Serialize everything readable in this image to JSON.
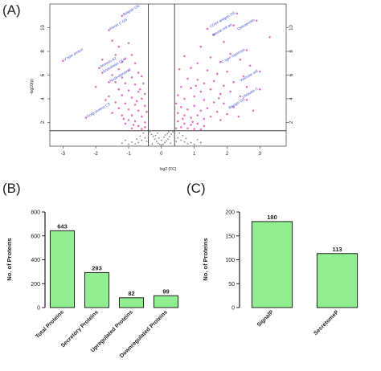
{
  "panels": {
    "a": "(A)",
    "b": "(B)",
    "c": "(C)"
  },
  "chart_data": [
    {
      "type": "scatter",
      "panel": "A",
      "xlabel": "log2 (FC)",
      "ylabel": "-log10(p)",
      "xlim": [
        -3.4,
        3.8
      ],
      "ylim": [
        0,
        12
      ],
      "xticks": [
        -3,
        -2,
        -1,
        0,
        1,
        2,
        3
      ],
      "yticks": [
        2,
        4,
        6,
        8,
        10
      ],
      "thresholds": {
        "x": [
          -0.4,
          0.4
        ],
        "y": 1.3
      },
      "colors": {
        "significant": "#e377c2",
        "nonsignificant": "#888888",
        "labels": "#3b4fd0"
      },
      "point_labels": [
        {
          "text": "Belgran OS",
          "x": -1.2,
          "y": 11.0
        },
        {
          "text": "Filmin C OS",
          "x": -1.6,
          "y": 9.8
        },
        {
          "text": "V type proton",
          "x": -3.0,
          "y": 7.2
        },
        {
          "text": "Annexin A2",
          "x": -1.9,
          "y": 6.6
        },
        {
          "text": "Endothelin C1A",
          "x": -1.8,
          "y": 6.2
        },
        {
          "text": "Nucleobindin 2",
          "x": -1.6,
          "y": 5.4
        },
        {
          "text": "Golgi protein C3",
          "x": -2.3,
          "y": 2.4
        },
        {
          "text": "CD44 antigen OS",
          "x": 2.3,
          "y": 11.2
        },
        {
          "text": "Neural cell ad",
          "x": 2.2,
          "y": 10.2
        },
        {
          "text": "Osteopontin",
          "x": 2.9,
          "y": 10.6
        },
        {
          "text": "C type mannose",
          "x": 2.6,
          "y": 8.1
        },
        {
          "text": "Vascular cell",
          "x": 3.0,
          "y": 6.3
        },
        {
          "text": "Ubiquitin C",
          "x": 3.0,
          "y": 4.8
        },
        {
          "text": "Basigin OS",
          "x": 2.6,
          "y": 3.9
        }
      ],
      "points_down": [
        [
          -1.2,
          11.0
        ],
        [
          -1.6,
          9.8
        ],
        [
          -3.0,
          7.2
        ],
        [
          -1.9,
          6.6
        ],
        [
          -1.8,
          6.2
        ],
        [
          -1.6,
          5.4
        ],
        [
          -2.3,
          2.4
        ],
        [
          -1.5,
          8.9
        ],
        [
          -1.3,
          8.4
        ],
        [
          -1.0,
          8.7
        ],
        [
          -1.4,
          7.7
        ],
        [
          -1.1,
          7.4
        ],
        [
          -0.9,
          7.7
        ],
        [
          -1.8,
          7.3
        ],
        [
          -1.2,
          7.1
        ],
        [
          -0.8,
          7.0
        ],
        [
          -1.3,
          6.5
        ],
        [
          -1.0,
          6.4
        ],
        [
          -0.7,
          6.2
        ],
        [
          -1.5,
          6.0
        ],
        [
          -1.2,
          5.8
        ],
        [
          -0.9,
          5.8
        ],
        [
          -0.6,
          5.9
        ],
        [
          -1.4,
          5.4
        ],
        [
          -1.1,
          5.3
        ],
        [
          -0.8,
          5.2
        ],
        [
          -0.55,
          5.3
        ],
        [
          -1.3,
          4.8
        ],
        [
          -1.0,
          4.7
        ],
        [
          -0.7,
          4.6
        ],
        [
          -0.5,
          4.4
        ],
        [
          -1.6,
          4.2
        ],
        [
          -1.2,
          4.3
        ],
        [
          -0.9,
          4.1
        ],
        [
          -0.6,
          4.0
        ],
        [
          -1.4,
          3.7
        ],
        [
          -1.1,
          3.6
        ],
        [
          -0.8,
          3.5
        ],
        [
          -0.5,
          3.4
        ],
        [
          -1.3,
          3.2
        ],
        [
          -1.0,
          3.1
        ],
        [
          -0.7,
          3.0
        ],
        [
          -0.45,
          2.9
        ],
        [
          -1.5,
          2.8
        ],
        [
          -1.2,
          2.6
        ],
        [
          -0.9,
          2.6
        ],
        [
          -0.6,
          2.5
        ],
        [
          -1.0,
          2.2
        ],
        [
          -0.8,
          2.1
        ],
        [
          -0.5,
          2.0
        ],
        [
          -1.1,
          1.9
        ],
        [
          -0.7,
          1.7
        ],
        [
          -0.5,
          1.6
        ],
        [
          -0.9,
          1.5
        ],
        [
          -0.6,
          1.45
        ],
        [
          -1.7,
          3.9
        ],
        [
          -2.0,
          5.0
        ],
        [
          -0.75,
          3.8
        ],
        [
          -0.65,
          4.8
        ],
        [
          -1.15,
          2.3
        ],
        [
          -0.85,
          1.8
        ]
      ],
      "points_up": [
        [
          2.3,
          11.2
        ],
        [
          2.2,
          10.2
        ],
        [
          2.9,
          10.6
        ],
        [
          2.6,
          8.1
        ],
        [
          3.0,
          6.3
        ],
        [
          3.0,
          4.8
        ],
        [
          2.6,
          3.9
        ],
        [
          1.6,
          9.4
        ],
        [
          1.9,
          8.8
        ],
        [
          1.2,
          8.4
        ],
        [
          2.1,
          7.8
        ],
        [
          1.5,
          7.5
        ],
        [
          1.8,
          7.1
        ],
        [
          2.4,
          7.3
        ],
        [
          1.1,
          7.0
        ],
        [
          0.9,
          6.6
        ],
        [
          1.4,
          6.4
        ],
        [
          1.7,
          6.1
        ],
        [
          2.0,
          6.3
        ],
        [
          2.5,
          5.9
        ],
        [
          0.8,
          5.7
        ],
        [
          1.1,
          5.6
        ],
        [
          1.3,
          5.3
        ],
        [
          1.6,
          5.5
        ],
        [
          1.9,
          5.1
        ],
        [
          2.2,
          5.4
        ],
        [
          0.6,
          5.0
        ],
        [
          0.9,
          4.9
        ],
        [
          1.2,
          4.6
        ],
        [
          1.5,
          4.8
        ],
        [
          1.8,
          4.4
        ],
        [
          2.1,
          4.6
        ],
        [
          2.4,
          4.2
        ],
        [
          0.5,
          4.3
        ],
        [
          0.7,
          4.0
        ],
        [
          1.0,
          4.2
        ],
        [
          1.3,
          3.9
        ],
        [
          1.6,
          3.7
        ],
        [
          1.9,
          3.6
        ],
        [
          2.2,
          3.3
        ],
        [
          0.45,
          3.6
        ],
        [
          0.6,
          3.3
        ],
        [
          0.8,
          3.1
        ],
        [
          1.0,
          3.4
        ],
        [
          1.2,
          3.0
        ],
        [
          1.4,
          3.2
        ],
        [
          1.7,
          2.9
        ],
        [
          2.0,
          2.7
        ],
        [
          0.5,
          2.8
        ],
        [
          0.7,
          2.6
        ],
        [
          0.9,
          2.4
        ],
        [
          1.1,
          2.6
        ],
        [
          1.3,
          2.3
        ],
        [
          1.5,
          2.5
        ],
        [
          1.8,
          2.2
        ],
        [
          0.5,
          2.1
        ],
        [
          0.7,
          1.9
        ],
        [
          0.9,
          1.8
        ],
        [
          1.1,
          1.9
        ],
        [
          1.3,
          1.7
        ],
        [
          0.6,
          1.6
        ],
        [
          0.8,
          1.5
        ],
        [
          1.0,
          1.45
        ],
        [
          1.2,
          1.4
        ],
        [
          0.45,
          1.5
        ],
        [
          2.8,
          3.0
        ],
        [
          2.6,
          5.0
        ],
        [
          3.3,
          9.2
        ],
        [
          2.7,
          6.8
        ],
        [
          1.4,
          9.9
        ],
        [
          0.7,
          7.6
        ],
        [
          0.55,
          6.5
        ],
        [
          1.05,
          5.1
        ],
        [
          1.75,
          4.05
        ],
        [
          2.35,
          2.5
        ],
        [
          0.65,
          2.3
        ],
        [
          0.95,
          2.05
        ]
      ],
      "points_ns": [
        [
          -0.35,
          1.2
        ],
        [
          -0.3,
          1.0
        ],
        [
          -0.25,
          0.8
        ],
        [
          -0.2,
          0.6
        ],
        [
          -0.15,
          0.4
        ],
        [
          -0.1,
          0.25
        ],
        [
          -0.05,
          0.15
        ],
        [
          0.0,
          0.1
        ],
        [
          0.05,
          0.15
        ],
        [
          0.1,
          0.3
        ],
        [
          0.15,
          0.45
        ],
        [
          0.2,
          0.6
        ],
        [
          0.25,
          0.8
        ],
        [
          0.3,
          1.0
        ],
        [
          0.35,
          1.2
        ],
        [
          -0.4,
          0.9
        ],
        [
          -0.5,
          0.7
        ],
        [
          -0.6,
          0.5
        ],
        [
          -0.7,
          0.3
        ],
        [
          -0.8,
          0.2
        ],
        [
          0.4,
          0.9
        ],
        [
          0.5,
          0.7
        ],
        [
          0.6,
          0.5
        ],
        [
          0.7,
          0.35
        ],
        [
          0.8,
          0.2
        ],
        [
          -0.9,
          0.35
        ],
        [
          -1.0,
          0.15
        ],
        [
          0.9,
          0.3
        ],
        [
          1.0,
          0.15
        ],
        [
          -0.45,
          0.4
        ],
        [
          0.45,
          0.4
        ],
        [
          -0.28,
          0.2
        ],
        [
          0.28,
          0.25
        ],
        [
          -0.18,
          0.9
        ],
        [
          0.18,
          1.05
        ],
        [
          -0.55,
          1.1
        ],
        [
          0.55,
          1.1
        ],
        [
          -0.65,
          0.85
        ],
        [
          0.65,
          0.9
        ],
        [
          -0.75,
          0.6
        ],
        [
          0.75,
          0.65
        ],
        [
          -1.1,
          0.5
        ],
        [
          1.1,
          0.55
        ],
        [
          -1.2,
          0.25
        ],
        [
          1.2,
          0.3
        ],
        [
          0.0,
          0.5
        ],
        [
          -0.08,
          0.7
        ],
        [
          0.08,
          0.75
        ],
        [
          0.12,
          0.95
        ],
        [
          -0.12,
          1.1
        ],
        [
          0.22,
          1.2
        ]
      ]
    },
    {
      "type": "bar",
      "panel": "B",
      "categories": [
        "Total Proteins",
        "Secretory Proteins",
        "Upregulated Proteins",
        "Downregulated Proteins"
      ],
      "values": [
        643,
        293,
        82,
        99
      ],
      "ylabel": "No. of Proteins",
      "ylim": [
        0,
        800
      ],
      "yticks": [
        0,
        200,
        400,
        600,
        800
      ],
      "colors": {
        "bar": "#90ee90",
        "stroke": "#222222"
      }
    },
    {
      "type": "bar",
      "panel": "C",
      "categories": [
        "SignalP",
        "SecretomeP"
      ],
      "values": [
        180,
        113
      ],
      "ylabel": "No. of Proteins",
      "ylim": [
        0,
        200
      ],
      "yticks": [
        0,
        50,
        100,
        150,
        200
      ],
      "colors": {
        "bar": "#90ee90",
        "stroke": "#222222"
      }
    }
  ]
}
